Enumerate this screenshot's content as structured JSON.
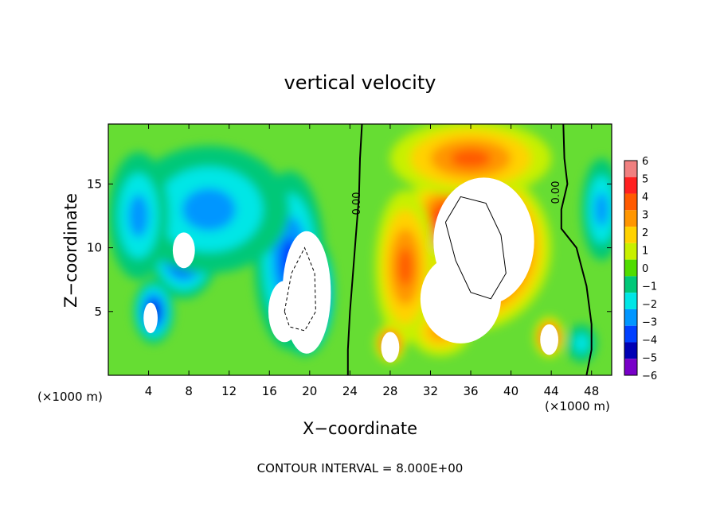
{
  "chart_data": {
    "type": "heatmap",
    "title": "vertical velocity",
    "xlabel": "X−coordinate",
    "ylabel": "Z−coordinate",
    "x_unit_left": "(×1000 m)",
    "x_unit_right": "(×1000 m)",
    "footer": "CONTOUR INTERVAL = 8.000E+00",
    "xlim": [
      0,
      50
    ],
    "ylim": [
      0,
      19.7
    ],
    "x_ticks": [
      4,
      8,
      12,
      16,
      20,
      24,
      28,
      32,
      36,
      40,
      44,
      48
    ],
    "y_ticks": [
      5,
      10,
      15
    ],
    "colorbar": {
      "levels": [
        6,
        5,
        4,
        3,
        2,
        1,
        0,
        -1,
        -2,
        -3,
        -4,
        -5,
        -6
      ],
      "labels": [
        "6",
        "5",
        "4",
        "3",
        "2",
        "1",
        "0",
        "−1",
        "−2",
        "−3",
        "−4",
        "−5",
        "−6"
      ],
      "colors": [
        "#f08080",
        "#ff2020",
        "#ff5a00",
        "#ff9600",
        "#ffd200",
        "#c8f000",
        "#50dc00",
        "#00c878",
        "#00e6e6",
        "#0096ff",
        "#0040ff",
        "#0000b4",
        "#7800c8"
      ],
      "background": "#66dd33"
    },
    "contour_labels": [
      "0.00",
      "0.00"
    ],
    "updrafts": [
      {
        "x": 36.0,
        "z": 10.0,
        "rx": 8.0,
        "rz": 6.5,
        "w": 9.0
      },
      {
        "x": 34.5,
        "z": 7.0,
        "rx": 3.5,
        "rz": 3.5,
        "w": 4.0
      },
      {
        "x": 29.5,
        "z": 8.5,
        "rx": 3.0,
        "rz": 6.0,
        "w": 4.0
      },
      {
        "x": 36.0,
        "z": 17.0,
        "rx": 8.0,
        "rz": 3.0,
        "w": 3.5
      },
      {
        "x": 28.0,
        "z": 2.5,
        "rx": 1.5,
        "rz": 1.5,
        "w": 6.0
      },
      {
        "x": 43.8,
        "z": 3.0,
        "rx": 1.5,
        "rz": 1.6,
        "w": 6.0
      },
      {
        "x": 33.0,
        "z": 3.5,
        "rx": 3.0,
        "rz": 2.0,
        "w": 3.0
      }
    ],
    "downdrafts": [
      {
        "x": 19.5,
        "z": 6.5,
        "rx": 3.0,
        "rz": 5.0,
        "w": -9.0
      },
      {
        "x": 18.0,
        "z": 9.0,
        "rx": 3.5,
        "rz": 7.0,
        "w": -4.0
      },
      {
        "x": 7.5,
        "z": 10.0,
        "rx": 3.5,
        "rz": 4.0,
        "w": -5.5
      },
      {
        "x": 4.5,
        "z": 5.0,
        "rx": 2.0,
        "rz": 2.5,
        "w": -5.0
      },
      {
        "x": 10.0,
        "z": 13.0,
        "rx": 8.0,
        "rz": 5.0,
        "w": -3.0
      },
      {
        "x": 3.0,
        "z": 12.5,
        "rx": 3.0,
        "rz": 5.0,
        "w": -2.5
      },
      {
        "x": 49.0,
        "z": 13.0,
        "rx": 2.0,
        "rz": 4.0,
        "w": -2.5
      },
      {
        "x": 47.0,
        "z": 2.5,
        "rx": 1.5,
        "rz": 1.5,
        "w": -2.0
      }
    ],
    "white_regions": [
      {
        "x": 37.3,
        "z": 10.5,
        "rx": 5.0,
        "rz": 5.0
      },
      {
        "x": 35.0,
        "z": 6.0,
        "rx": 4.0,
        "rz": 3.5
      },
      {
        "x": 28.0,
        "z": 2.2,
        "rx": 0.9,
        "rz": 1.2
      },
      {
        "x": 43.8,
        "z": 2.8,
        "rx": 0.9,
        "rz": 1.2
      },
      {
        "x": 19.7,
        "z": 6.5,
        "rx": 2.4,
        "rz": 4.8
      },
      {
        "x": 17.5,
        "z": 5.0,
        "rx": 1.6,
        "rz": 2.4
      },
      {
        "x": 7.5,
        "z": 9.8,
        "rx": 1.1,
        "rz": 1.4
      },
      {
        "x": 4.2,
        "z": 4.5,
        "rx": 0.7,
        "rz": 1.2
      }
    ]
  }
}
